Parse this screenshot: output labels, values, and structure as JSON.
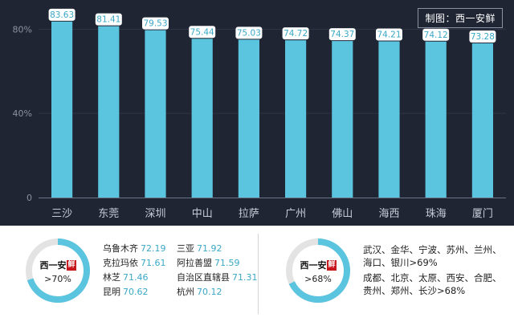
{
  "credit": "制图：西一安鲜",
  "chart_data": {
    "type": "bar",
    "categories": [
      "三沙",
      "东莞",
      "深圳",
      "中山",
      "拉萨",
      "广州",
      "佛山",
      "海西",
      "珠海",
      "厦门"
    ],
    "values": [
      83.63,
      81.41,
      79.53,
      75.44,
      75.03,
      74.72,
      74.37,
      74.21,
      74.12,
      73.28
    ],
    "value_labels": [
      "83.63",
      "81.41",
      "79.53",
      "75.44",
      "75.03",
      "74.72",
      "74.37",
      "74.21",
      "74.12",
      "73.28"
    ],
    "yticks": [
      {
        "value": 0,
        "label": "0"
      },
      {
        "value": 40,
        "label": "40%"
      },
      {
        "value": 80,
        "label": "80%"
      }
    ],
    "ylim": [
      0,
      87
    ],
    "grid": true,
    "colors": {
      "bar": "#5bc4df",
      "background": "#1f2533",
      "axis": "#8a93a3"
    }
  },
  "bottom": {
    "left": {
      "brand": "西一安",
      "brand_seal": "鲜",
      "threshold": ">70%",
      "ring_fraction": 0.7,
      "cities": [
        {
          "name": "乌鲁木齐",
          "score": "72.19"
        },
        {
          "name": "三亚",
          "score": "71.92"
        },
        {
          "name": "克拉玛依",
          "score": "71.61"
        },
        {
          "name": "阿拉善盟",
          "score": "71.59"
        },
        {
          "name": "林芝",
          "score": "71.46"
        },
        {
          "name": "自治区直辖县",
          "score": "71.31"
        },
        {
          "name": "昆明",
          "score": "70.62"
        },
        {
          "name": "杭州",
          "score": "70.12"
        }
      ]
    },
    "right": {
      "brand": "西一安",
      "brand_seal": "鲜",
      "threshold": ">68%",
      "ring_fraction": 0.68,
      "line1": "武汉、金华、宁波、苏州、兰州、",
      "line2": "海口、银川>69%",
      "line3": "成都、北京、太原、西安、合肥、",
      "line4": "贵州、郑州、长沙>68%"
    },
    "colors": {
      "ring": "#5bc4df",
      "ring_track": "#e3e3e3",
      "score": "#3aa8c6"
    }
  }
}
